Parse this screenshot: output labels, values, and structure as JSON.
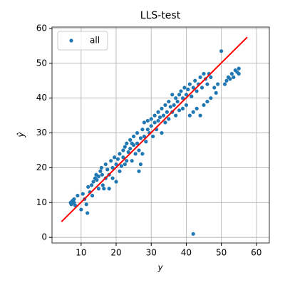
{
  "chart_data": {
    "type": "scatter",
    "title": "LLS-test",
    "xlabel": "y",
    "ylabel": "ŷ",
    "series": [
      {
        "name": "all",
        "color": "#1f77b4",
        "x": [
          7,
          7.2,
          7.5,
          8,
          8,
          8.3,
          9,
          10,
          10.5,
          11,
          11.5,
          11.8,
          12,
          12.5,
          13,
          13.2,
          13.5,
          14,
          14.3,
          14.5,
          15,
          15,
          15.5,
          15.8,
          16,
          16.2,
          16.5,
          17,
          17,
          17.5,
          18,
          18,
          18.5,
          19,
          19,
          19.5,
          20,
          20,
          20.5,
          21,
          21,
          21.5,
          22,
          22,
          22.5,
          22.5,
          23,
          23,
          23.5,
          24,
          24,
          24.5,
          24.5,
          25,
          25,
          25.5,
          26,
          26,
          26.5,
          26.5,
          27,
          27,
          27.5,
          27.5,
          28,
          28,
          28.5,
          29,
          29,
          29.5,
          30,
          30,
          30.5,
          31,
          31,
          31.5,
          32,
          32,
          32.5,
          33,
          33,
          33.5,
          34,
          34,
          34.5,
          35,
          35,
          35.5,
          36,
          36,
          36.5,
          37,
          37,
          37.5,
          38,
          38,
          38.5,
          39,
          39,
          39.5,
          40,
          40,
          40.5,
          41,
          41,
          41.5,
          42,
          42,
          42,
          42.5,
          43,
          43,
          43.5,
          44,
          44,
          44.5,
          45,
          45,
          45.5,
          46,
          46,
          46.5,
          47,
          47,
          48,
          48.5,
          49,
          50,
          51,
          51.5,
          52,
          52.5,
          53,
          53.5,
          54,
          54.5,
          55,
          55
        ],
        "y": [
          10,
          9.5,
          10.5,
          10,
          11,
          9.2,
          12,
          8,
          12.5,
          11,
          9.5,
          7,
          14.5,
          13,
          15,
          12,
          16,
          17,
          18,
          16.5,
          17.5,
          14,
          19,
          20,
          18,
          15,
          14,
          17,
          21,
          19.5,
          18,
          14,
          22,
          20,
          17,
          23,
          21,
          16,
          22.5,
          24,
          19,
          20.5,
          25,
          23,
          26,
          21,
          27,
          22,
          24.5,
          28,
          25.5,
          27,
          22,
          26.5,
          29,
          24,
          30,
          27,
          25,
          19,
          21,
          28.5,
          31,
          24,
          29,
          33,
          27.5,
          31,
          33.5,
          30,
          32,
          34,
          29,
          33,
          35,
          31,
          36,
          33.5,
          34.5,
          37,
          30,
          35,
          38,
          33,
          36,
          39,
          34,
          37.5,
          41,
          36,
          38,
          40,
          35,
          39,
          41,
          36.5,
          42,
          40,
          37,
          43,
          41,
          38,
          42.5,
          44,
          35,
          40.5,
          43,
          36,
          1,
          45,
          42,
          37,
          44,
          46,
          35,
          43,
          47,
          38,
          45.5,
          44,
          39,
          47,
          40,
          46,
          43,
          41.5,
          44,
          53.5,
          44,
          45,
          46,
          45.5,
          47,
          46,
          48,
          47.5,
          48.5,
          47
        ]
      }
    ],
    "fit_line": {
      "color": "#ff0000",
      "x": [
        4.4,
        57.4
      ],
      "y": [
        4.5,
        57.5
      ]
    },
    "xlim": [
      1.7,
      63.7
    ],
    "ylim": [
      -1.6,
      60.4
    ],
    "xticks": [
      10,
      20,
      30,
      40,
      50,
      60
    ],
    "yticks": [
      0,
      10,
      20,
      30,
      40,
      50,
      60
    ],
    "grid": true,
    "legend": "upper left"
  }
}
